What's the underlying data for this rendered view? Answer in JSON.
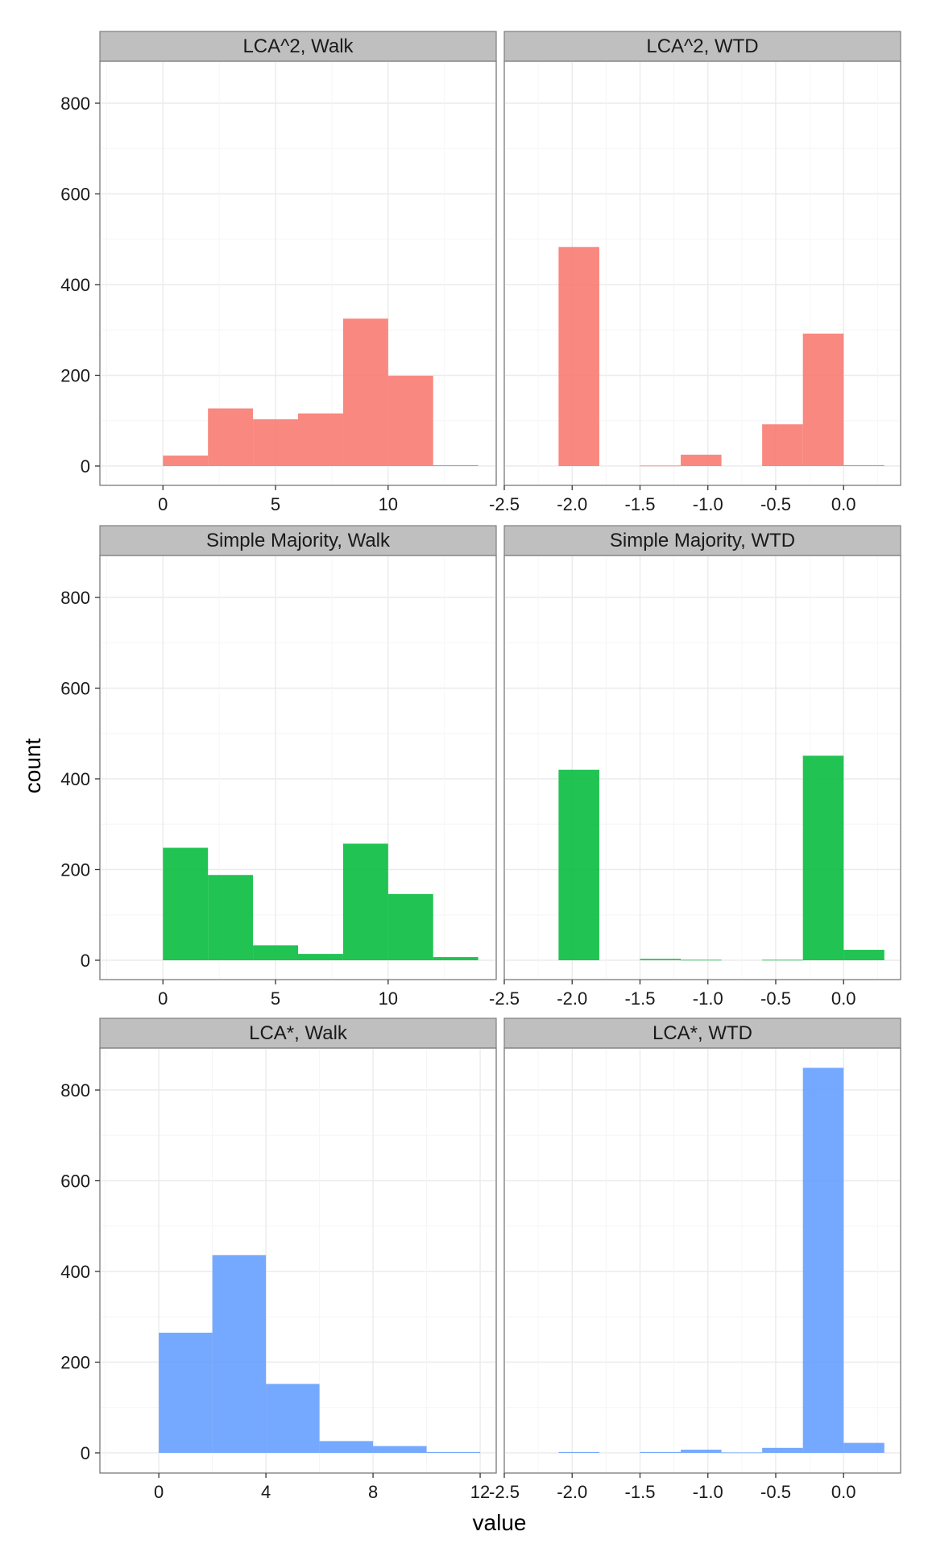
{
  "chart_data": {
    "type": "bar",
    "subtype": "faceted-histogram",
    "xlabel": "value",
    "ylabel": "count",
    "ylim": [
      0,
      900
    ],
    "yticks": [
      0,
      200,
      400,
      600,
      800
    ],
    "grid": true,
    "legend": "none",
    "colors": {
      "LCA^2": "#F8766D",
      "Simple Majority": "#00BA38",
      "LCA*": "#619CFF"
    },
    "walk_xticks_rows": [
      [
        0,
        5,
        10
      ],
      [
        0,
        5,
        10
      ],
      [
        0,
        4,
        8,
        12
      ]
    ],
    "wtd_xticks": [
      "-2.5",
      "-2.0",
      "-1.5",
      "-1.0",
      "-0.5",
      "0.0"
    ],
    "panels": [
      {
        "title": "LCA^2, Walk",
        "group": "LCA^2",
        "xlim": [
          -2.8,
          14.8
        ],
        "bins": [
          {
            "x0": 0,
            "x1": 2,
            "count": 23
          },
          {
            "x0": 2,
            "x1": 4,
            "count": 127
          },
          {
            "x0": 4,
            "x1": 6,
            "count": 103
          },
          {
            "x0": 6,
            "x1": 8,
            "count": 116
          },
          {
            "x0": 8,
            "x1": 10,
            "count": 325
          },
          {
            "x0": 10,
            "x1": 12,
            "count": 199
          },
          {
            "x0": 12,
            "x1": 14,
            "count": 2
          }
        ]
      },
      {
        "title": "LCA^2, WTD",
        "group": "LCA^2",
        "xlim": [
          -2.5,
          0.42
        ],
        "bins": [
          {
            "x0": -2.1,
            "x1": -1.8,
            "count": 483
          },
          {
            "x0": -1.5,
            "x1": -1.2,
            "count": 1
          },
          {
            "x0": -1.2,
            "x1": -0.9,
            "count": 25
          },
          {
            "x0": -0.6,
            "x1": -0.3,
            "count": 92
          },
          {
            "x0": -0.3,
            "x1": 0,
            "count": 292
          },
          {
            "x0": 0,
            "x1": 0.3,
            "count": 2
          }
        ]
      },
      {
        "title": "Simple Majority, Walk",
        "group": "Simple Majority",
        "xlim": [
          -2.8,
          14.8
        ],
        "bins": [
          {
            "x0": 0,
            "x1": 2,
            "count": 248
          },
          {
            "x0": 2,
            "x1": 4,
            "count": 188
          },
          {
            "x0": 4,
            "x1": 6,
            "count": 33
          },
          {
            "x0": 6,
            "x1": 8,
            "count": 14
          },
          {
            "x0": 8,
            "x1": 10,
            "count": 257
          },
          {
            "x0": 10,
            "x1": 12,
            "count": 146
          },
          {
            "x0": 12,
            "x1": 14,
            "count": 7
          }
        ]
      },
      {
        "title": "Simple Majority, WTD",
        "group": "Simple Majority",
        "xlim": [
          -2.5,
          0.42
        ],
        "bins": [
          {
            "x0": -2.1,
            "x1": -1.8,
            "count": 420
          },
          {
            "x0": -1.5,
            "x1": -1.2,
            "count": 3
          },
          {
            "x0": -1.2,
            "x1": -0.9,
            "count": 1
          },
          {
            "x0": -0.6,
            "x1": -0.3,
            "count": 1
          },
          {
            "x0": -0.3,
            "x1": 0,
            "count": 451
          },
          {
            "x0": 0,
            "x1": 0.3,
            "count": 23
          }
        ]
      },
      {
        "title": "LCA*, Walk",
        "group": "LCA*",
        "xlim": [
          -2.2,
          12.6
        ],
        "bins": [
          {
            "x0": 0,
            "x1": 2,
            "count": 265
          },
          {
            "x0": 2,
            "x1": 4,
            "count": 436
          },
          {
            "x0": 4,
            "x1": 6,
            "count": 152
          },
          {
            "x0": 6,
            "x1": 8,
            "count": 26
          },
          {
            "x0": 8,
            "x1": 10,
            "count": 15
          },
          {
            "x0": 10,
            "x1": 12,
            "count": 2
          }
        ]
      },
      {
        "title": "LCA*, WTD",
        "group": "LCA*",
        "xlim": [
          -2.5,
          0.42
        ],
        "bins": [
          {
            "x0": -2.1,
            "x1": -1.8,
            "count": 2
          },
          {
            "x0": -1.5,
            "x1": -1.2,
            "count": 2
          },
          {
            "x0": -1.2,
            "x1": -0.9,
            "count": 7
          },
          {
            "x0": -0.9,
            "x1": -0.6,
            "count": 1
          },
          {
            "x0": -0.6,
            "x1": -0.3,
            "count": 11
          },
          {
            "x0": -0.3,
            "x1": 0,
            "count": 849
          },
          {
            "x0": 0,
            "x1": 0.3,
            "count": 22
          }
        ]
      }
    ]
  }
}
